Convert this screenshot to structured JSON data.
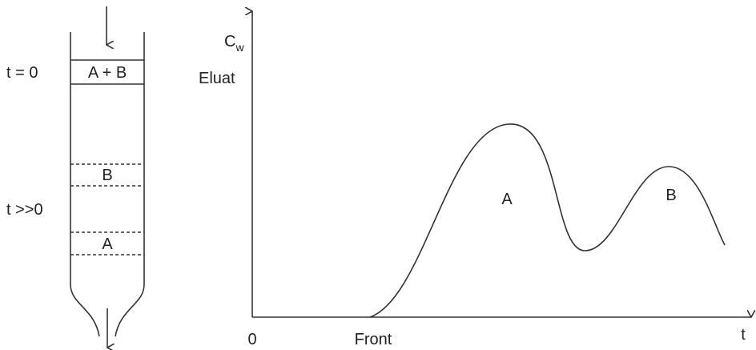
{
  "column": {
    "times": [
      "t = 0",
      "t >>0"
    ],
    "bands": [
      "A + B",
      "B",
      "A"
    ]
  },
  "chart": {
    "y_label": "C",
    "y_label_sub": "w",
    "y_label_2": "Eluat",
    "origin": "0",
    "front": "Front",
    "x_label": "t",
    "peaks": [
      "A",
      "B"
    ]
  }
}
